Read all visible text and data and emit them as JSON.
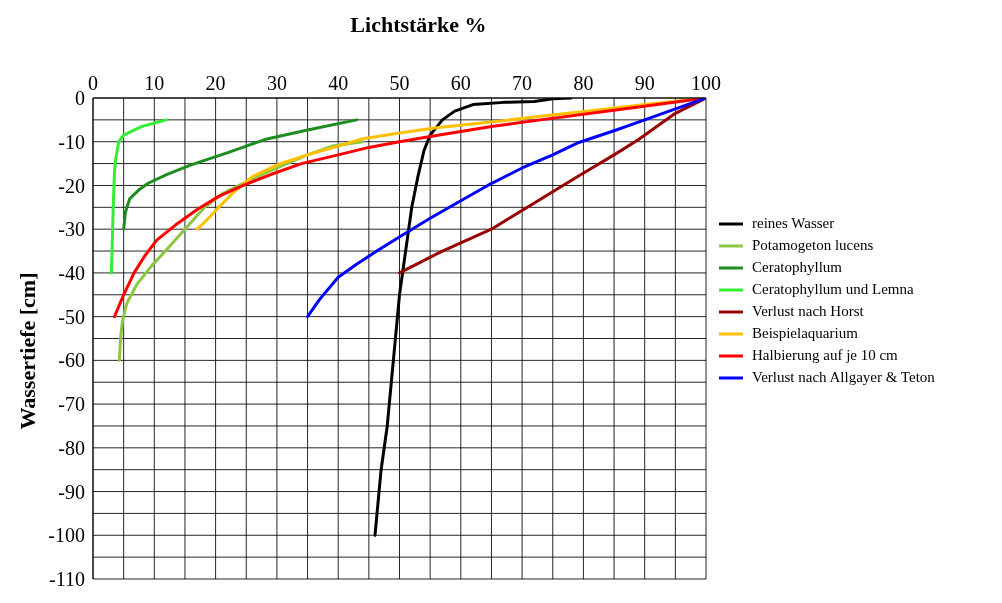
{
  "chart_data": {
    "type": "line",
    "xlabel": "Lichtstärke %",
    "ylabel": "Wassertiefe [cm]",
    "xlim": [
      0,
      100
    ],
    "ylim": [
      -110,
      0
    ],
    "xticks": [
      0,
      {
        "value": 5,
        "label": null
      },
      10,
      {
        "value": 15,
        "label": null
      },
      20,
      {
        "value": 25,
        "label": null
      },
      30,
      {
        "value": 35,
        "label": null
      },
      40,
      {
        "value": 45,
        "label": null
      },
      50,
      {
        "value": 55,
        "label": null
      },
      60,
      {
        "value": 65,
        "label": null
      },
      70,
      {
        "value": 75,
        "label": null
      },
      80,
      {
        "value": 85,
        "label": null
      },
      90,
      {
        "value": 95,
        "label": null
      },
      100
    ],
    "yticks": [
      0,
      {
        "value": -5,
        "label": null
      },
      -10,
      {
        "value": -15,
        "label": null
      },
      -20,
      {
        "value": -25,
        "label": null
      },
      -30,
      {
        "value": -35,
        "label": null
      },
      -40,
      {
        "value": -45,
        "label": null
      },
      -50,
      {
        "value": -55,
        "label": null
      },
      -60,
      {
        "value": -65,
        "label": null
      },
      -70,
      {
        "value": -75,
        "label": null
      },
      -80,
      {
        "value": -85,
        "label": null
      },
      -90,
      {
        "value": -95,
        "label": null
      },
      -100,
      {
        "value": -105,
        "label": null
      },
      -110
    ],
    "grid": true,
    "legend": "right",
    "marker": "none",
    "line_style": "solid",
    "series": [
      {
        "name": "reines Wasser",
        "color": "#000000",
        "x": [
          46,
          47,
          48,
          49,
          50,
          51,
          52,
          53,
          54,
          55,
          57,
          59,
          62,
          67,
          72,
          75,
          78
        ],
        "values": [
          -100,
          -85,
          -75,
          -60,
          -45,
          -35,
          -25,
          -18,
          -12,
          -8.5,
          -5,
          -3,
          -1.5,
          -1,
          -0.8,
          -0.2,
          0
        ]
      },
      {
        "name": "Potamogeton lucens",
        "color": "#8dc63f",
        "x": [
          4.3,
          4.5,
          4.8,
          5.5,
          7.2,
          9.5,
          11.8,
          15,
          18.2,
          21,
          24.5,
          30,
          35,
          39,
          44
        ],
        "values": [
          -60,
          -55,
          -51,
          -47,
          -42.5,
          -38.5,
          -35,
          -30,
          -25,
          -22,
          -19.5,
          -16,
          -13,
          -11,
          -10
        ]
      },
      {
        "name": "Ceratophyllum",
        "color": "#1e8c1e",
        "x": [
          5,
          5.3,
          6,
          7.5,
          9,
          12,
          16,
          22,
          28,
          35,
          43
        ],
        "values": [
          -30,
          -26,
          -23,
          -21,
          -19.5,
          -17.5,
          -15.3,
          -12.5,
          -9.5,
          -7.3,
          -5
        ]
      },
      {
        "name": "Ceratophyllum und Lemna",
        "color": "#33ee33",
        "x": [
          3,
          3.3,
          3.5,
          3.7,
          4.2,
          5,
          8,
          12
        ],
        "values": [
          -40,
          -25,
          -17,
          -14,
          -10,
          -8.5,
          -6.5,
          -5
        ]
      },
      {
        "name": "Verlust nach Horst",
        "color": "#990000",
        "x": [
          50,
          57,
          65,
          72,
          79,
          85,
          89,
          95,
          100
        ],
        "values": [
          -40,
          -35,
          -30,
          -24,
          -18,
          -13,
          -9.5,
          -3.5,
          0
        ]
      },
      {
        "name": "Beispielaquarium",
        "color": "#ffc000",
        "x": [
          17,
          18.5,
          20.5,
          23,
          26,
          30.5,
          35,
          40,
          44,
          50,
          56,
          65,
          73,
          82,
          90,
          100
        ],
        "values": [
          -30,
          -28,
          -25,
          -21.5,
          -18,
          -15,
          -13,
          -11,
          -9.3,
          -8,
          -6.8,
          -5.5,
          -4.2,
          -2.8,
          -1.5,
          0
        ]
      },
      {
        "name": "Halbierung auf je 10 cm",
        "color": "#ff0000",
        "x": [
          3.5,
          5,
          6.7,
          8.5,
          10.4,
          13.5,
          17,
          20.5,
          24.5,
          29,
          34,
          40,
          45,
          50,
          55,
          65,
          73,
          85,
          100
        ],
        "values": [
          -50,
          -45,
          -40,
          -36,
          -32.5,
          -29,
          -25.5,
          -22.5,
          -20,
          -17.5,
          -15,
          -13,
          -11.3,
          -10,
          -8.8,
          -6.5,
          -5,
          -2.8,
          0
        ]
      },
      {
        "name": "Verlust nach Allgayer & Teton",
        "color": "#0000ff",
        "x": [
          35,
          37,
          40,
          43,
          46.3,
          50.3,
          55,
          60,
          64.4,
          70,
          75,
          79,
          85,
          90,
          100
        ],
        "values": [
          -50,
          -46,
          -41,
          -38,
          -35,
          -31.5,
          -27.5,
          -23.5,
          -20,
          -16,
          -13,
          -10.3,
          -7.5,
          -5,
          0
        ]
      }
    ]
  }
}
